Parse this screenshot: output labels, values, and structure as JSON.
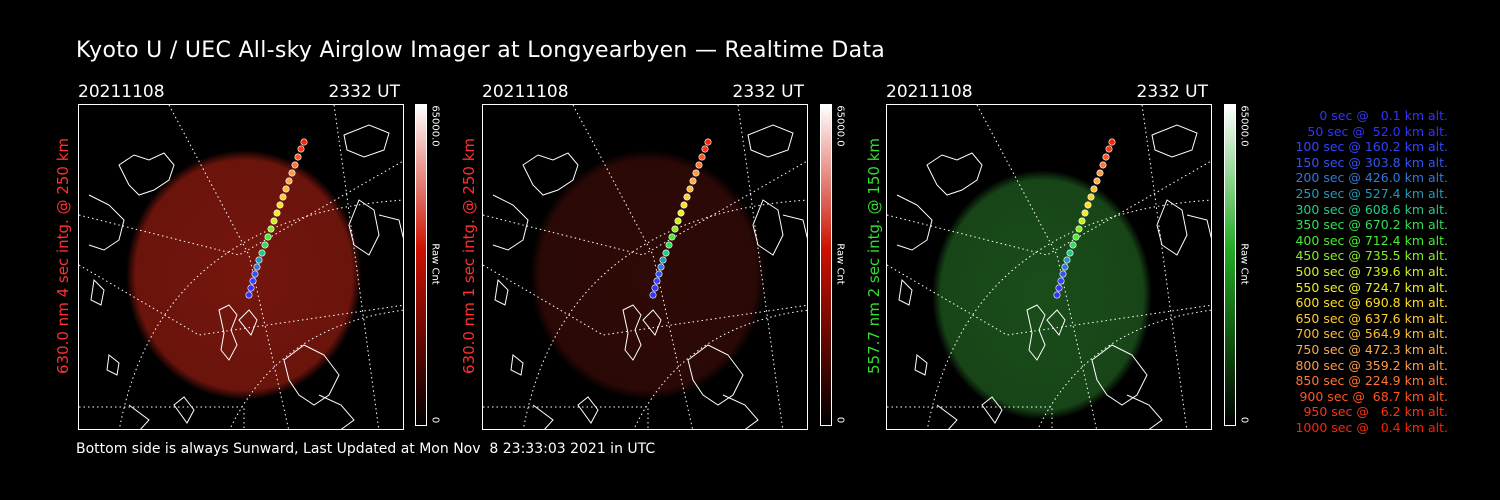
{
  "title": "Kyoto U / UEC All-sky Airglow Imager at Longyearbyen — Realtime Data",
  "panels": [
    {
      "date": "20211108",
      "time": "2332 UT",
      "ylabel": "630.0 nm 4 sec intg. @ 250 km",
      "ylabel_color": "#ff3030",
      "cbar_max": "65000.0",
      "cbar_unit": "Raw Cnt",
      "cbar_min": "0",
      "cbar_color": "#cc1100",
      "glow": "#8a1a10",
      "glow_opacity": 0.85
    },
    {
      "date": "20211108",
      "time": "2332 UT",
      "ylabel": "630.0 nm 1 sec intg. @ 250 km",
      "ylabel_color": "#ff3030",
      "cbar_max": "65000.0",
      "cbar_unit": "Raw Cnt",
      "cbar_min": "0",
      "cbar_color": "#cc1100",
      "glow": "#3a0c08",
      "glow_opacity": 0.8
    },
    {
      "date": "20211108",
      "time": "2332 UT",
      "ylabel": "557.7 nm 2 sec intg. @ 150 km",
      "ylabel_color": "#33dd33",
      "cbar_max": "65000.0",
      "cbar_unit": "Raw Cnt",
      "cbar_min": "0",
      "cbar_color": "#22aa22",
      "glow": "#1f5a1f",
      "glow_opacity": 0.85
    }
  ],
  "legend": [
    {
      "text": "0 sec @   0.1 km alt.",
      "color": "#3333ff"
    },
    {
      "text": "50 sec @  52.0 km alt.",
      "color": "#3333ff"
    },
    {
      "text": "100 sec @ 160.2 km alt.",
      "color": "#3344ff"
    },
    {
      "text": "150 sec @ 303.8 km alt.",
      "color": "#3355ee"
    },
    {
      "text": "200 sec @ 426.0 km alt.",
      "color": "#3377dd"
    },
    {
      "text": "250 sec @ 527.4 km alt.",
      "color": "#2299bb"
    },
    {
      "text": "300 sec @ 608.6 km alt.",
      "color": "#22cc88"
    },
    {
      "text": "350 sec @ 670.2 km alt.",
      "color": "#33dd55"
    },
    {
      "text": "400 sec @ 712.4 km alt.",
      "color": "#44ee33"
    },
    {
      "text": "450 sec @ 735.5 km alt.",
      "color": "#88ee22"
    },
    {
      "text": "500 sec @ 739.6 km alt.",
      "color": "#ccee22"
    },
    {
      "text": "550 sec @ 724.7 km alt.",
      "color": "#eeee22"
    },
    {
      "text": "600 sec @ 690.8 km alt.",
      "color": "#ffdd22"
    },
    {
      "text": "650 sec @ 637.6 km alt.",
      "color": "#ffcc33"
    },
    {
      "text": "700 sec @ 564.9 km alt.",
      "color": "#ffbb33"
    },
    {
      "text": "750 sec @ 472.3 km alt.",
      "color": "#ffaa44"
    },
    {
      "text": "800 sec @ 359.2 km alt.",
      "color": "#ff9944"
    },
    {
      "text": "850 sec @ 224.9 km alt.",
      "color": "#ff7733"
    },
    {
      "text": "900 sec @  68.7 km alt.",
      "color": "#ff5522"
    },
    {
      "text": "950 sec @   6.2 km alt.",
      "color": "#ff3311"
    },
    {
      "text": "1000 sec @   0.4 km alt.",
      "color": "#ff2200"
    }
  ],
  "footer": "Bottom side is always Sunward, Last Updated at Mon Nov  8 23:33:03 2021 in UTC"
}
